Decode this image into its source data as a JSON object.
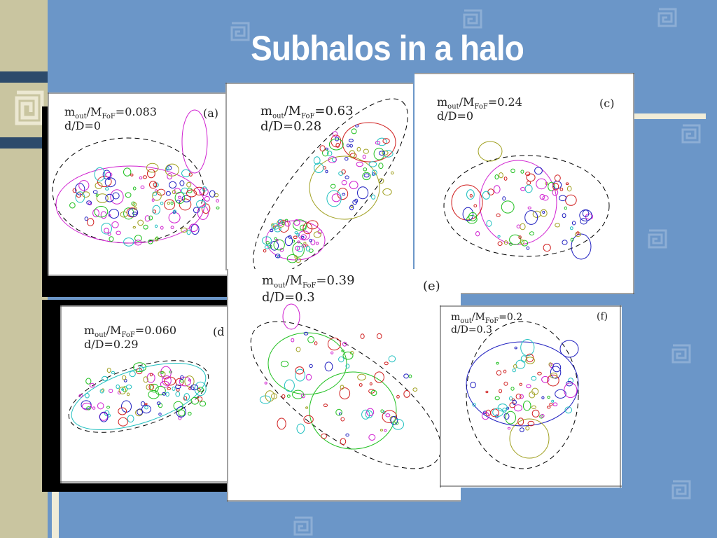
{
  "slide": {
    "title": "Subhalos in a halo"
  },
  "panels": [
    {
      "tag": "(a)",
      "m_sub": "out",
      "M_sub": "FoF",
      "m_val": "=0.083",
      "d_line": "d/D=0"
    },
    {
      "tag": "",
      "m_sub": "out",
      "M_sub": "FoF",
      "m_val": "=0.63",
      "d_line": "d/D=0.28"
    },
    {
      "tag": "(c)",
      "m_sub": "out",
      "M_sub": "FoF",
      "m_val": "=0.24",
      "d_line": "d/D=0"
    },
    {
      "tag": "(d",
      "m_sub": "out",
      "M_sub": "FoF",
      "m_val": "=0.060",
      "d_line": "d/D=0.29"
    },
    {
      "tag": "(e)",
      "m_sub": "out",
      "M_sub": "FoF",
      "m_val": "=0.39",
      "d_line": "d/D=0.3"
    },
    {
      "tag": "(f)",
      "m_sub": "out",
      "M_sub": "FoF",
      "m_val": "=0.2",
      "d_line": "d/D=0.3"
    }
  ],
  "colors": {
    "background": "#6b96c8",
    "sidebar": "#c9c5a0",
    "accent": "#2c4a6b"
  }
}
